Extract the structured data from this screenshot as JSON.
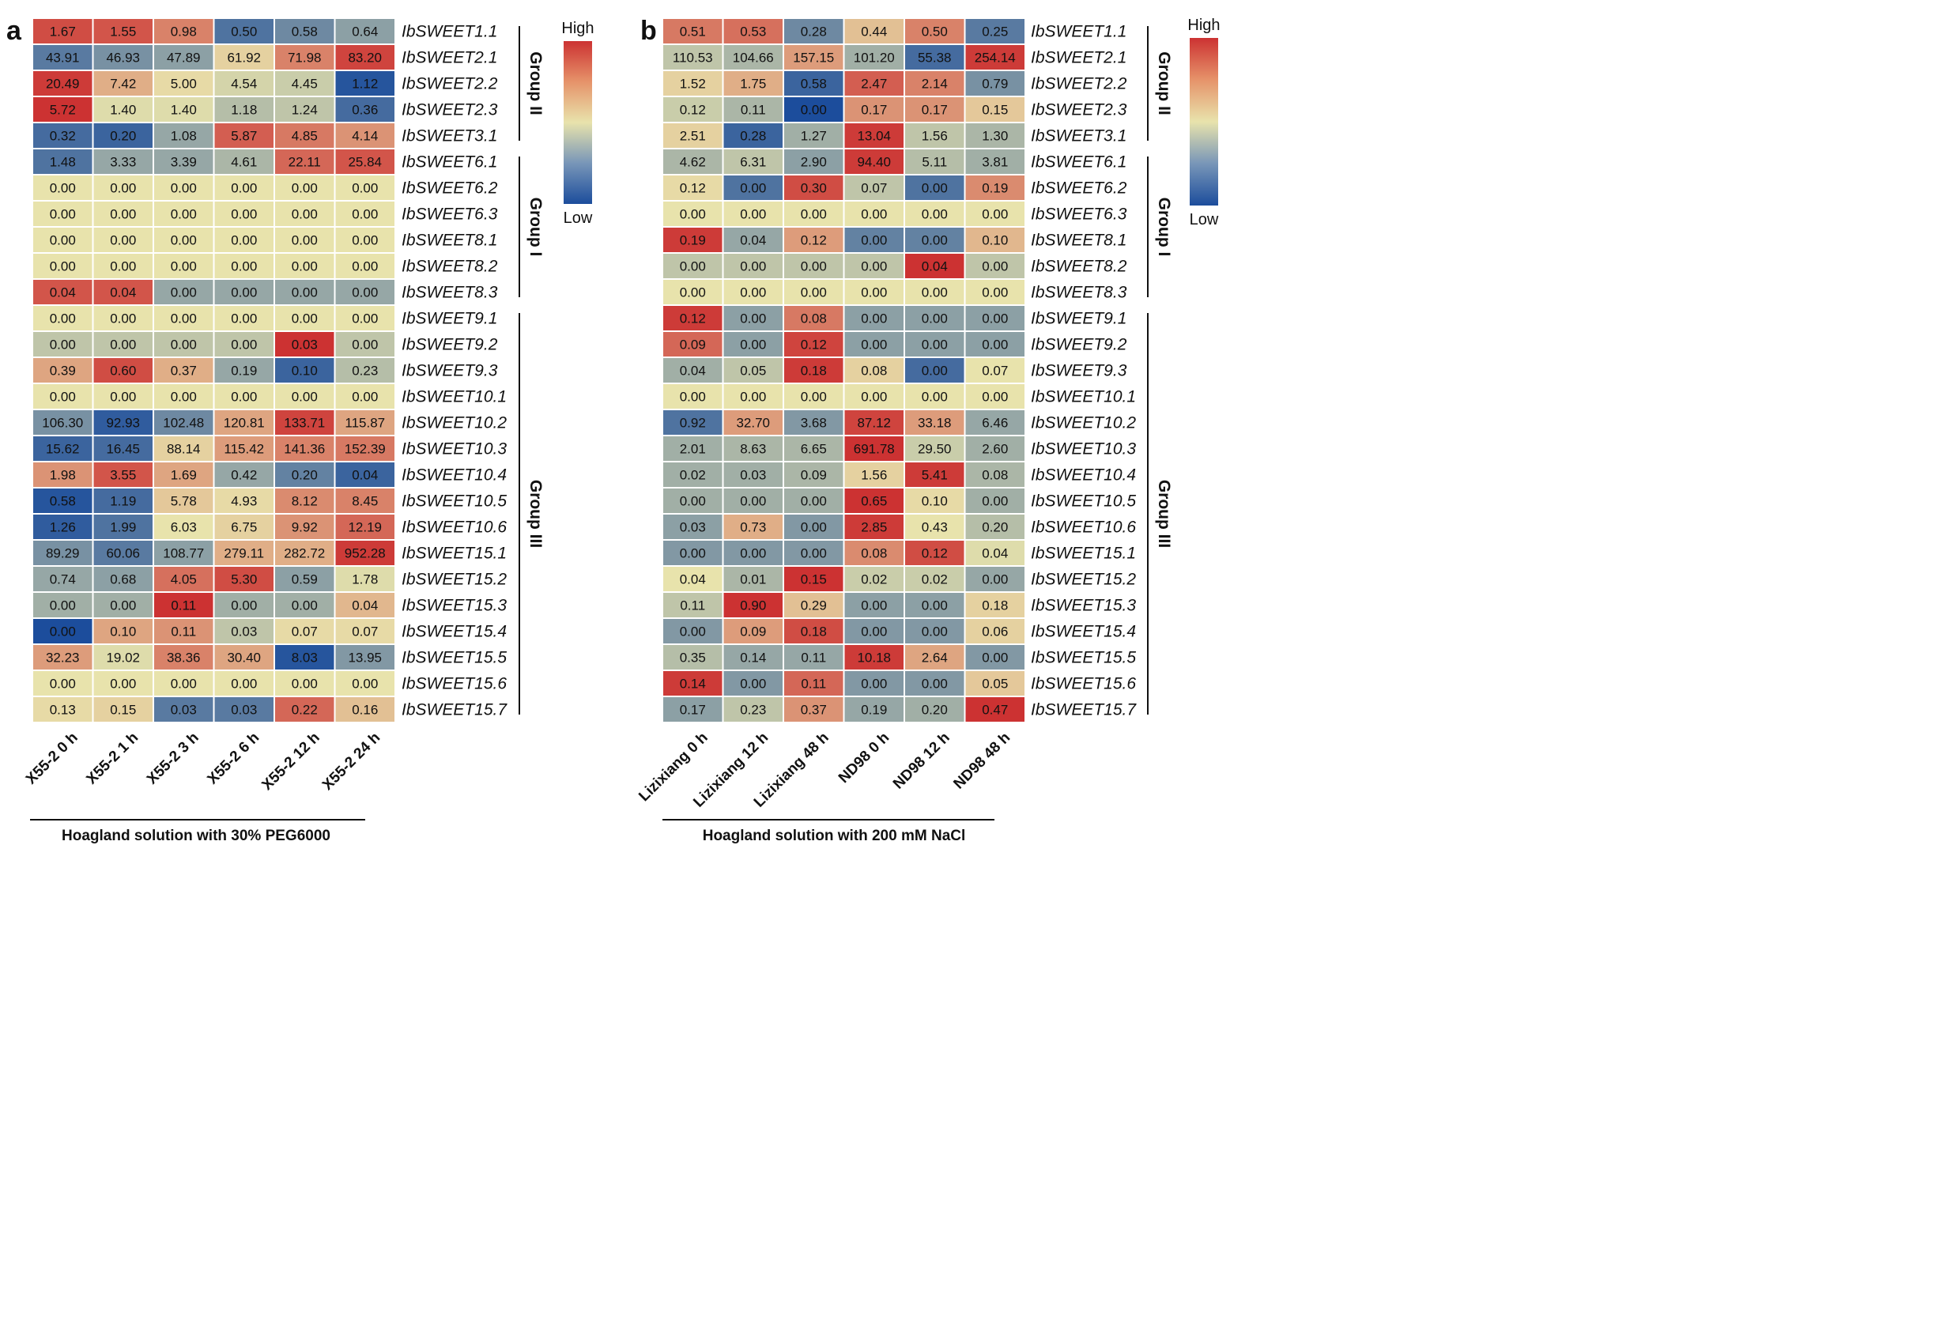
{
  "chart_data": [
    {
      "type": "heatmap",
      "panel_label": "a",
      "condition": "Hoagland solution with 30% PEG6000",
      "legend": {
        "high": "High",
        "low": "Low"
      },
      "colors": {
        "low": "#1c4d9c",
        "mid": "#e8e3ac",
        "high": "#cc3232"
      },
      "columns": [
        "X55-2 0 h",
        "X55-2 1 h",
        "X55-2 3 h",
        "X55-2 6 h",
        "X55-2 12 h",
        "X55-2 24 h"
      ],
      "rows": [
        "IbSWEET1.1",
        "IbSWEET2.1",
        "IbSWEET2.2",
        "IbSWEET2.3",
        "IbSWEET3.1",
        "IbSWEET6.1",
        "IbSWEET6.2",
        "IbSWEET6.3",
        "IbSWEET8.1",
        "IbSWEET8.2",
        "IbSWEET8.3",
        "IbSWEET9.1",
        "IbSWEET9.2",
        "IbSWEET9.3",
        "IbSWEET10.1",
        "IbSWEET10.2",
        "IbSWEET10.3",
        "IbSWEET10.4",
        "IbSWEET10.5",
        "IbSWEET10.6",
        "IbSWEET15.1",
        "IbSWEET15.2",
        "IbSWEET15.3",
        "IbSWEET15.4",
        "IbSWEET15.5",
        "IbSWEET15.6",
        "IbSWEET15.7"
      ],
      "values": [
        [
          "1.67",
          "1.55",
          "0.98",
          "0.50",
          "0.58",
          "0.64"
        ],
        [
          "43.91",
          "46.93",
          "47.89",
          "61.92",
          "71.98",
          "83.20"
        ],
        [
          "20.49",
          "7.42",
          "5.00",
          "4.54",
          "4.45",
          "1.12"
        ],
        [
          "5.72",
          "1.40",
          "1.40",
          "1.18",
          "1.24",
          "0.36"
        ],
        [
          "0.32",
          "0.20",
          "1.08",
          "5.87",
          "4.85",
          "4.14"
        ],
        [
          "1.48",
          "3.33",
          "3.39",
          "4.61",
          "22.11",
          "25.84"
        ],
        [
          "0.00",
          "0.00",
          "0.00",
          "0.00",
          "0.00",
          "0.00"
        ],
        [
          "0.00",
          "0.00",
          "0.00",
          "0.00",
          "0.00",
          "0.00"
        ],
        [
          "0.00",
          "0.00",
          "0.00",
          "0.00",
          "0.00",
          "0.00"
        ],
        [
          "0.00",
          "0.00",
          "0.00",
          "0.00",
          "0.00",
          "0.00"
        ],
        [
          "0.04",
          "0.04",
          "0.00",
          "0.00",
          "0.00",
          "0.00"
        ],
        [
          "0.00",
          "0.00",
          "0.00",
          "0.00",
          "0.00",
          "0.00"
        ],
        [
          "0.00",
          "0.00",
          "0.00",
          "0.00",
          "0.03",
          "0.00"
        ],
        [
          "0.39",
          "0.60",
          "0.37",
          "0.19",
          "0.10",
          "0.23"
        ],
        [
          "0.00",
          "0.00",
          "0.00",
          "0.00",
          "0.00",
          "0.00"
        ],
        [
          "106.30",
          "92.93",
          "102.48",
          "120.81",
          "133.71",
          "115.87"
        ],
        [
          "15.62",
          "16.45",
          "88.14",
          "115.42",
          "141.36",
          "152.39"
        ],
        [
          "1.98",
          "3.55",
          "1.69",
          "0.42",
          "0.20",
          "0.04"
        ],
        [
          "0.58",
          "1.19",
          "5.78",
          "4.93",
          "8.12",
          "8.45"
        ],
        [
          "1.26",
          "1.99",
          "6.03",
          "6.75",
          "9.92",
          "12.19"
        ],
        [
          "89.29",
          "60.06",
          "108.77",
          "279.11",
          "282.72",
          "952.28"
        ],
        [
          "0.74",
          "0.68",
          "4.05",
          "5.30",
          "0.59",
          "1.78"
        ],
        [
          "0.00",
          "0.00",
          "0.11",
          "0.00",
          "0.00",
          "0.04"
        ],
        [
          "0.00",
          "0.10",
          "0.11",
          "0.03",
          "0.07",
          "0.07"
        ],
        [
          "32.23",
          "19.02",
          "38.36",
          "30.40",
          "8.03",
          "13.95"
        ],
        [
          "0.00",
          "0.00",
          "0.00",
          "0.00",
          "0.00",
          "0.00"
        ],
        [
          "0.13",
          "0.15",
          "0.03",
          "0.03",
          "0.22",
          "0.16"
        ]
      ],
      "color_levels": [
        [
          0.85,
          0.8,
          0.55,
          -0.75,
          -0.6,
          -0.45
        ],
        [
          -0.7,
          -0.55,
          -0.45,
          0.1,
          0.55,
          0.9
        ],
        [
          0.95,
          0.3,
          0.05,
          -0.1,
          -0.15,
          -0.95
        ],
        [
          1.0,
          -0.05,
          -0.05,
          -0.25,
          -0.2,
          -0.8
        ],
        [
          -0.8,
          -0.85,
          -0.4,
          0.75,
          0.6,
          0.45
        ],
        [
          -0.75,
          -0.4,
          -0.4,
          -0.3,
          0.7,
          0.8
        ],
        [
          0.0,
          0.0,
          0.0,
          0.0,
          0.0,
          0.0
        ],
        [
          0.0,
          0.0,
          0.0,
          0.0,
          0.0,
          0.0
        ],
        [
          0.0,
          0.0,
          0.0,
          0.0,
          0.0,
          0.0
        ],
        [
          0.0,
          0.0,
          0.0,
          0.0,
          0.0,
          0.0
        ],
        [
          0.8,
          0.8,
          -0.4,
          -0.4,
          -0.4,
          -0.4
        ],
        [
          0.0,
          0.0,
          0.0,
          0.0,
          0.0,
          0.0
        ],
        [
          -0.2,
          -0.2,
          -0.2,
          -0.2,
          1.0,
          -0.2
        ],
        [
          0.35,
          0.85,
          0.3,
          -0.4,
          -0.85,
          -0.25
        ],
        [
          0.0,
          0.0,
          0.0,
          0.0,
          0.0,
          0.0
        ],
        [
          -0.55,
          -0.9,
          -0.6,
          0.35,
          0.9,
          0.35
        ],
        [
          -0.85,
          -0.8,
          0.1,
          0.4,
          0.55,
          0.6
        ],
        [
          0.45,
          0.8,
          0.35,
          -0.4,
          -0.65,
          -0.85
        ],
        [
          -0.95,
          -0.8,
          0.15,
          0.05,
          0.5,
          0.55
        ],
        [
          -0.9,
          -0.75,
          0.0,
          0.1,
          0.45,
          0.7
        ],
        [
          -0.55,
          -0.7,
          -0.45,
          0.3,
          0.3,
          0.95
        ],
        [
          -0.4,
          -0.45,
          0.65,
          0.85,
          -0.45,
          -0.05
        ],
        [
          -0.35,
          -0.35,
          1.0,
          -0.35,
          -0.35,
          0.25
        ],
        [
          -1.0,
          0.35,
          0.45,
          -0.2,
          0.05,
          0.05
        ],
        [
          0.4,
          -0.05,
          0.55,
          0.35,
          -0.95,
          -0.5
        ],
        [
          0.0,
          0.0,
          0.0,
          0.0,
          0.0,
          0.0
        ],
        [
          0.05,
          0.1,
          -0.7,
          -0.7,
          0.7,
          0.2
        ]
      ],
      "groups": [
        {
          "name": "Group II",
          "first_row": 0,
          "last_row": 4
        },
        {
          "name": "Group I",
          "first_row": 5,
          "last_row": 10
        },
        {
          "name": "Group III",
          "first_row": 11,
          "last_row": 26
        }
      ]
    },
    {
      "type": "heatmap",
      "panel_label": "b",
      "condition": "Hoagland solution with 200 mM NaCl",
      "legend": {
        "high": "High",
        "low": "Low"
      },
      "colors": {
        "low": "#1c4d9c",
        "mid": "#e8e3ac",
        "high": "#cc3232"
      },
      "columns": [
        "Lizixiang 0 h",
        "Lizixiang 12 h",
        "Lizixiang 48 h",
        "ND98 0 h",
        "ND98 12 h",
        "ND98 48 h"
      ],
      "rows": [
        "IbSWEET1.1",
        "IbSWEET2.1",
        "IbSWEET2.2",
        "IbSWEET2.3",
        "IbSWEET3.1",
        "IbSWEET6.1",
        "IbSWEET6.2",
        "IbSWEET6.3",
        "IbSWEET8.1",
        "IbSWEET8.2",
        "IbSWEET8.3",
        "IbSWEET9.1",
        "IbSWEET9.2",
        "IbSWEET9.3",
        "IbSWEET10.1",
        "IbSWEET10.2",
        "IbSWEET10.3",
        "IbSWEET10.4",
        "IbSWEET10.5",
        "IbSWEET10.6",
        "IbSWEET15.1",
        "IbSWEET15.2",
        "IbSWEET15.3",
        "IbSWEET15.4",
        "IbSWEET15.5",
        "IbSWEET15.6",
        "IbSWEET15.7"
      ],
      "values": [
        [
          "0.51",
          "0.53",
          "0.28",
          "0.44",
          "0.50",
          "0.25"
        ],
        [
          "110.53",
          "104.66",
          "157.15",
          "101.20",
          "55.38",
          "254.14"
        ],
        [
          "1.52",
          "1.75",
          "0.58",
          "2.47",
          "2.14",
          "0.79"
        ],
        [
          "0.12",
          "0.11",
          "0.00",
          "0.17",
          "0.17",
          "0.15"
        ],
        [
          "2.51",
          "0.28",
          "1.27",
          "13.04",
          "1.56",
          "1.30"
        ],
        [
          "4.62",
          "6.31",
          "2.90",
          "94.40",
          "5.11",
          "3.81"
        ],
        [
          "0.12",
          "0.00",
          "0.30",
          "0.07",
          "0.00",
          "0.19"
        ],
        [
          "0.00",
          "0.00",
          "0.00",
          "0.00",
          "0.00",
          "0.00"
        ],
        [
          "0.19",
          "0.04",
          "0.12",
          "0.00",
          "0.00",
          "0.10"
        ],
        [
          "0.00",
          "0.00",
          "0.00",
          "0.00",
          "0.04",
          "0.00"
        ],
        [
          "0.00",
          "0.00",
          "0.00",
          "0.00",
          "0.00",
          "0.00"
        ],
        [
          "0.12",
          "0.00",
          "0.08",
          "0.00",
          "0.00",
          "0.00"
        ],
        [
          "0.09",
          "0.00",
          "0.12",
          "0.00",
          "0.00",
          "0.00"
        ],
        [
          "0.04",
          "0.05",
          "0.18",
          "0.08",
          "0.00",
          "0.07"
        ],
        [
          "0.00",
          "0.00",
          "0.00",
          "0.00",
          "0.00",
          "0.00"
        ],
        [
          "0.92",
          "32.70",
          "3.68",
          "87.12",
          "33.18",
          "6.46"
        ],
        [
          "2.01",
          "8.63",
          "6.65",
          "691.78",
          "29.50",
          "2.60"
        ],
        [
          "0.02",
          "0.03",
          "0.09",
          "1.56",
          "5.41",
          "0.08"
        ],
        [
          "0.00",
          "0.00",
          "0.00",
          "0.65",
          "0.10",
          "0.00"
        ],
        [
          "0.03",
          "0.73",
          "0.00",
          "2.85",
          "0.43",
          "0.20"
        ],
        [
          "0.00",
          "0.00",
          "0.00",
          "0.08",
          "0.12",
          "0.04"
        ],
        [
          "0.04",
          "0.01",
          "0.15",
          "0.02",
          "0.02",
          "0.00"
        ],
        [
          "0.11",
          "0.90",
          "0.29",
          "0.00",
          "0.00",
          "0.18"
        ],
        [
          "0.00",
          "0.09",
          "0.18",
          "0.00",
          "0.00",
          "0.06"
        ],
        [
          "0.35",
          "0.14",
          "0.11",
          "10.18",
          "2.64",
          "0.00"
        ],
        [
          "0.14",
          "0.00",
          "0.11",
          "0.00",
          "0.00",
          "0.05"
        ],
        [
          "0.17",
          "0.23",
          "0.37",
          "0.19",
          "0.20",
          "0.47"
        ]
      ],
      "color_levels": [
        [
          0.6,
          0.65,
          -0.6,
          0.2,
          0.55,
          -0.7
        ],
        [
          -0.2,
          -0.3,
          0.4,
          -0.35,
          -0.8,
          0.95
        ],
        [
          0.1,
          0.3,
          -0.85,
          0.75,
          0.55,
          -0.55
        ],
        [
          -0.15,
          -0.3,
          -1.0,
          0.45,
          0.45,
          0.15
        ],
        [
          0.1,
          -0.85,
          -0.35,
          0.95,
          -0.2,
          -0.3
        ],
        [
          -0.3,
          -0.2,
          -0.45,
          0.95,
          -0.25,
          -0.35
        ],
        [
          0.05,
          -0.75,
          0.85,
          -0.2,
          -0.75,
          0.5
        ],
        [
          0.0,
          0.0,
          0.0,
          0.0,
          0.0,
          0.0
        ],
        [
          0.95,
          -0.4,
          0.4,
          -0.65,
          -0.65,
          0.25
        ],
        [
          -0.2,
          -0.2,
          -0.2,
          -0.2,
          1.0,
          -0.2
        ],
        [
          0.0,
          0.0,
          0.0,
          0.0,
          0.0,
          0.0
        ],
        [
          0.95,
          -0.45,
          0.6,
          -0.45,
          -0.45,
          -0.45
        ],
        [
          0.7,
          -0.45,
          0.9,
          -0.45,
          -0.45,
          -0.45
        ],
        [
          -0.35,
          -0.2,
          0.95,
          0.1,
          -0.8,
          0.0
        ],
        [
          0.0,
          0.0,
          0.0,
          0.0,
          0.0,
          0.0
        ],
        [
          -0.75,
          0.4,
          -0.5,
          0.9,
          0.4,
          -0.4
        ],
        [
          -0.35,
          -0.3,
          -0.3,
          1.0,
          -0.15,
          -0.35
        ],
        [
          -0.35,
          -0.35,
          -0.3,
          0.1,
          0.95,
          -0.3
        ],
        [
          -0.35,
          -0.35,
          -0.35,
          1.0,
          0.05,
          -0.35
        ],
        [
          -0.45,
          0.3,
          -0.5,
          0.95,
          0.0,
          -0.25
        ],
        [
          -0.5,
          -0.5,
          -0.5,
          0.5,
          0.85,
          -0.05
        ],
        [
          0.0,
          -0.3,
          1.0,
          -0.15,
          -0.15,
          -0.4
        ],
        [
          -0.2,
          1.0,
          0.2,
          -0.45,
          -0.45,
          0.1
        ],
        [
          -0.5,
          0.4,
          0.85,
          -0.5,
          -0.5,
          0.1
        ],
        [
          -0.25,
          -0.4,
          -0.4,
          0.95,
          0.35,
          -0.5
        ],
        [
          0.95,
          -0.5,
          0.7,
          -0.5,
          -0.5,
          0.15
        ],
        [
          -0.45,
          -0.2,
          0.45,
          -0.4,
          -0.35,
          1.0
        ]
      ],
      "groups": [
        {
          "name": "Group II",
          "first_row": 0,
          "last_row": 4
        },
        {
          "name": "Group I",
          "first_row": 5,
          "last_row": 10
        },
        {
          "name": "Group III",
          "first_row": 11,
          "last_row": 26
        }
      ]
    }
  ]
}
